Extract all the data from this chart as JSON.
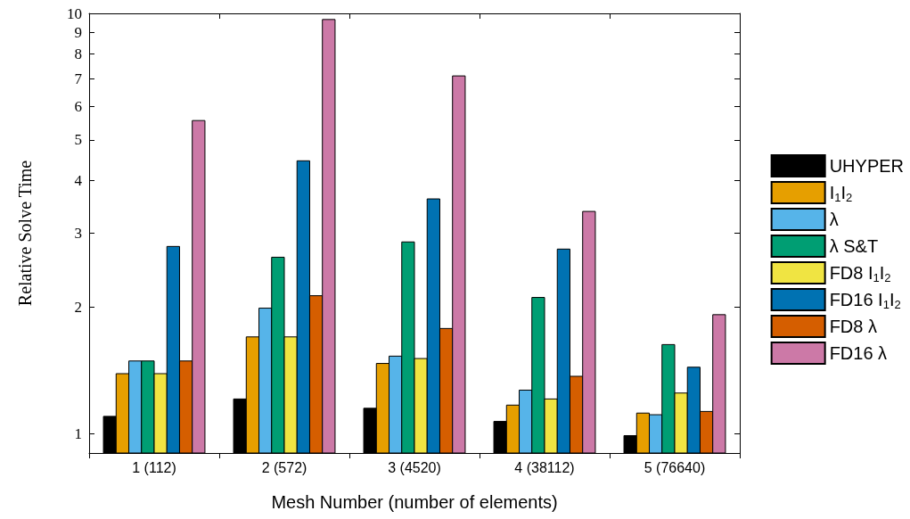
{
  "chart_data": {
    "type": "bar",
    "xlabel": "Mesh Number (number of elements)",
    "ylabel": "Relative Solve Time",
    "categories": [
      "1 (112)",
      "2 (572)",
      "3 (4520)",
      "4 (38112)",
      "5 (76640)"
    ],
    "series": [
      {
        "name": "UHYPER",
        "color": "#000000",
        "values": [
          1.1,
          1.21,
          1.15,
          1.07,
          0.99
        ]
      },
      {
        "name": "I$_{1}$I$_{2}$",
        "color": "#e69f00",
        "values": [
          1.39,
          1.7,
          1.47,
          1.17,
          1.12
        ]
      },
      {
        "name": "λ",
        "color": "#56b4e9",
        "values": [
          1.49,
          1.99,
          1.53,
          1.27,
          1.11
        ]
      },
      {
        "name": "λ S&T",
        "color": "#009e73",
        "values": [
          1.49,
          2.63,
          2.86,
          2.11,
          1.63
        ]
      },
      {
        "name": "FD8 I$_{1}$I$_{2}$",
        "color": "#f0e442",
        "values": [
          1.39,
          1.7,
          1.51,
          1.21,
          1.25
        ]
      },
      {
        "name": "FD16 I$_{1}$I$_{2}$",
        "color": "#0072b2",
        "values": [
          2.79,
          4.46,
          3.62,
          2.75,
          1.44
        ]
      },
      {
        "name": "FD8 λ",
        "color": "#d55e00",
        "values": [
          1.49,
          2.13,
          1.78,
          1.37,
          1.13
        ]
      },
      {
        "name": "FD16 λ",
        "color": "#cc79a7",
        "values": [
          5.56,
          9.67,
          7.1,
          3.38,
          1.92
        ]
      }
    ],
    "ylim": [
      0.9,
      10
    ],
    "yticks": [
      1,
      2,
      3,
      4,
      5,
      6,
      7,
      8,
      9,
      10
    ],
    "log": true,
    "grid": false,
    "legend": "right"
  }
}
